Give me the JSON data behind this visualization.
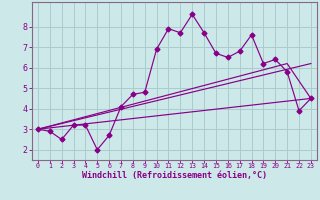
{
  "background_color": "#cce8e8",
  "grid_color": "#aacccc",
  "line_color": "#880088",
  "spine_color": "#886688",
  "xlim": [
    -0.5,
    23.5
  ],
  "ylim": [
    1.5,
    9.2
  ],
  "yticks": [
    2,
    3,
    4,
    5,
    6,
    7,
    8
  ],
  "xticks": [
    0,
    1,
    2,
    3,
    4,
    5,
    6,
    7,
    8,
    9,
    10,
    11,
    12,
    13,
    14,
    15,
    16,
    17,
    18,
    19,
    20,
    21,
    22,
    23
  ],
  "series1_x": [
    0,
    1,
    2,
    3,
    4,
    5,
    6,
    7,
    8,
    9,
    10,
    11,
    12,
    13,
    14,
    15,
    16,
    17,
    18,
    19,
    20,
    21,
    22,
    23
  ],
  "series1_y": [
    3.0,
    2.9,
    2.5,
    3.2,
    3.2,
    2.0,
    2.7,
    4.1,
    4.7,
    4.8,
    6.9,
    7.9,
    7.7,
    8.6,
    7.7,
    6.7,
    6.5,
    6.8,
    7.6,
    6.2,
    6.4,
    5.8,
    3.9,
    4.5
  ],
  "series2_x": [
    0,
    23
  ],
  "series2_y": [
    3.0,
    6.2
  ],
  "series3_x": [
    0,
    23
  ],
  "series3_y": [
    3.0,
    4.5
  ],
  "series4_x": [
    0,
    21,
    23
  ],
  "series4_y": [
    3.0,
    6.2,
    4.5
  ],
  "xlabel": "Windchill (Refroidissement éolien,°C)",
  "xlabel_fontsize": 6.0
}
